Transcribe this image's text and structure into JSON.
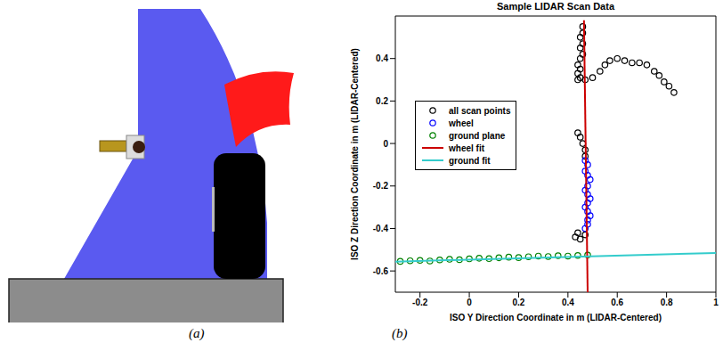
{
  "captions": [
    "(a)",
    "(b)"
  ],
  "chart_data": {
    "type": "scatter",
    "title": "Sample LIDAR Scan Data",
    "x_label": "ISO Y Direction Coordinate in m (LIDAR-Centered)",
    "y_label": "ISO Z Direction Coordinate in m (LIDAR-Centered)",
    "xlim": [
      -0.3,
      1
    ],
    "xticks": [
      -0.2,
      0,
      0.2,
      0.4,
      0.6,
      0.8,
      1
    ],
    "ylim": [
      -0.7,
      0.6
    ],
    "yticks": [
      -0.6,
      -0.4,
      -0.2,
      0,
      0.2,
      0.4
    ],
    "legend": "upper left",
    "series": [
      {
        "name": "all scan points",
        "type": "scatter",
        "marker": "circle",
        "color": "#000000",
        "x": [
          0.46,
          0.46,
          0.45,
          0.46,
          0.45,
          0.46,
          0.45,
          0.44,
          0.45,
          0.44,
          0.45,
          0.44,
          0.47,
          0.5,
          0.53,
          0.55,
          0.57,
          0.6,
          0.63,
          0.66,
          0.69,
          0.72,
          0.75,
          0.77,
          0.79,
          0.81,
          0.83,
          0.44,
          0.45,
          0.46,
          0.47,
          0.47,
          0.44,
          0.43,
          0.45,
          0.47
        ],
        "y": [
          0.55,
          0.52,
          0.5,
          0.47,
          0.45,
          0.42,
          0.4,
          0.37,
          0.35,
          0.33,
          0.31,
          0.3,
          0.3,
          0.31,
          0.34,
          0.37,
          0.39,
          0.4,
          0.39,
          0.38,
          0.38,
          0.37,
          0.34,
          0.32,
          0.29,
          0.27,
          0.24,
          0.05,
          0.03,
          0.0,
          -0.03,
          -0.06,
          -0.42,
          -0.44,
          -0.45,
          -0.43
        ]
      },
      {
        "name": "wheel",
        "type": "scatter",
        "marker": "circle",
        "color": "#0000ff",
        "x": [
          0.47,
          0.48,
          0.47,
          0.48,
          0.49,
          0.48,
          0.47,
          0.48,
          0.49,
          0.48,
          0.47,
          0.48,
          0.49,
          0.48,
          0.48,
          0.47
        ],
        "y": [
          -0.08,
          -0.1,
          -0.13,
          -0.15,
          -0.17,
          -0.2,
          -0.22,
          -0.24,
          -0.26,
          -0.28,
          -0.3,
          -0.32,
          -0.34,
          -0.36,
          -0.38,
          -0.4
        ]
      },
      {
        "name": "ground plane",
        "type": "scatter",
        "marker": "circle",
        "color": "#008000",
        "x": [
          -0.28,
          -0.24,
          -0.2,
          -0.16,
          -0.12,
          -0.08,
          -0.04,
          0.0,
          0.04,
          0.08,
          0.12,
          0.16,
          0.2,
          0.24,
          0.28,
          0.32,
          0.36,
          0.4,
          0.44,
          0.48
        ],
        "y": [
          -0.555,
          -0.552,
          -0.55,
          -0.553,
          -0.548,
          -0.545,
          -0.547,
          -0.543,
          -0.54,
          -0.542,
          -0.538,
          -0.535,
          -0.537,
          -0.533,
          -0.53,
          -0.532,
          -0.528,
          -0.53,
          -0.527,
          -0.525
        ]
      },
      {
        "name": "wheel fit",
        "type": "line",
        "line_style": "solid",
        "color": "#cc0000",
        "x": [
          0.48,
          0.465
        ],
        "y": [
          -0.7,
          0.58
        ]
      },
      {
        "name": "ground fit",
        "type": "line",
        "line_style": "solid",
        "color": "#33cccc",
        "x": [
          -0.3,
          1
        ],
        "y": [
          -0.556,
          -0.515
        ]
      }
    ]
  }
}
